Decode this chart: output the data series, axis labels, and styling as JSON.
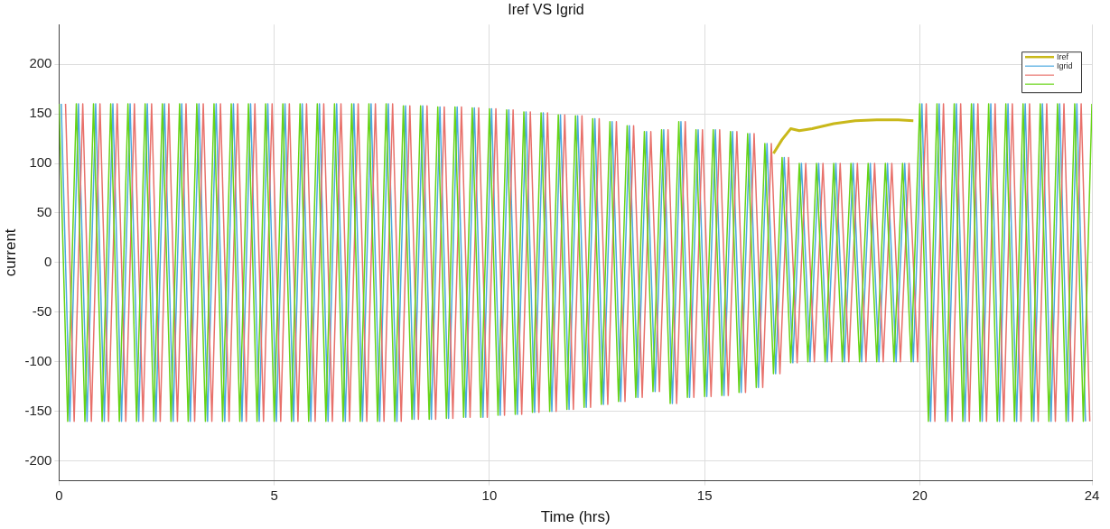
{
  "chart_data": {
    "type": "line",
    "title": "Iref VS Igrid",
    "xlabel": "Time (hrs)",
    "ylabel": "current",
    "xlim": [
      0,
      24
    ],
    "xticks": [
      0,
      5,
      10,
      15,
      20,
      24
    ],
    "ylim": [
      -220,
      240
    ],
    "yticks": [
      -200,
      -150,
      -100,
      -50,
      0,
      50,
      100,
      150,
      200
    ],
    "grid": true,
    "legend": "top right",
    "line_style": "solid",
    "marker": "none",
    "x": [
      0,
      0.2,
      0.4,
      0.6,
      0.8,
      1,
      1.2,
      1.4,
      1.6,
      1.8,
      2,
      2.2,
      2.4,
      2.6,
      2.8,
      3,
      3.2,
      3.4,
      3.6,
      3.8,
      4,
      4.2,
      4.4,
      4.6,
      4.8,
      5,
      5.2,
      5.4,
      5.6,
      5.8,
      6,
      6.2,
      6.4,
      6.6,
      6.8,
      7,
      7.2,
      7.4,
      7.6,
      7.8,
      8,
      8.2,
      8.4,
      8.6,
      8.8,
      9,
      9.2,
      9.4,
      9.6,
      9.8,
      10,
      10.2,
      10.4,
      10.6,
      10.8,
      11,
      11.2,
      11.4,
      11.6,
      11.8,
      12,
      12.2,
      12.4,
      12.6,
      12.8,
      13,
      13.2,
      13.4,
      13.6,
      13.8,
      14,
      14.2,
      14.4,
      14.6,
      14.8,
      15,
      15.2,
      15.4,
      15.6,
      15.8,
      16,
      16.2,
      16.4,
      16.6,
      16.8,
      17,
      17.2,
      17.4,
      17.6,
      17.8,
      18,
      18.2,
      18.4,
      18.6,
      18.8,
      19,
      19.2,
      19.4,
      19.6,
      19.8,
      20,
      20.2,
      20.4,
      20.6,
      20.8,
      21,
      21.2,
      21.4,
      21.6,
      21.8,
      22,
      22.2,
      22.4,
      22.6,
      22.8,
      23,
      23.2,
      23.4,
      23.6,
      23.8,
      24
    ],
    "series": [
      {
        "name": "Iref",
        "color": "#c9b81a",
        "x": [
          16.6,
          16.8,
          17,
          17.2,
          17.5,
          18,
          18.5,
          19,
          19.5,
          19.85
        ],
        "values": [
          110,
          124,
          135,
          133,
          135,
          140,
          143,
          144,
          144,
          143
        ]
      },
      {
        "name": "Igrid",
        "color": "#4aa8e0",
        "x": [
          0.05,
          0.25,
          0.45,
          0.65,
          0.85,
          1.05,
          1.25,
          1.45,
          1.65,
          1.85,
          2.05,
          2.25,
          2.45,
          2.65,
          2.85,
          3.05,
          3.25,
          3.45,
          3.65,
          3.85,
          4.05,
          4.25,
          4.45,
          4.65,
          4.85,
          5.05,
          5.25,
          5.45,
          5.65,
          5.85,
          6.05,
          6.25,
          6.45,
          6.65,
          6.85,
          7.05,
          7.25,
          7.45,
          7.65,
          7.85,
          8.05,
          8.25,
          8.45,
          8.65,
          8.85,
          9.05,
          9.25,
          9.45,
          9.65,
          9.85,
          10.05,
          10.25,
          10.45,
          10.65,
          10.85,
          11.05,
          11.25,
          11.45,
          11.65,
          11.85,
          12.05,
          12.25,
          12.45,
          12.65,
          12.85,
          13.05,
          13.25,
          13.45,
          13.65,
          13.85,
          14.05,
          14.25,
          14.45,
          14.65,
          14.85,
          15.05,
          15.25,
          15.45,
          15.65,
          15.85,
          16.05,
          16.25,
          16.45,
          16.65,
          16.85,
          17.05,
          17.25,
          17.45,
          17.65,
          17.85,
          18.05,
          18.25,
          18.45,
          18.65,
          18.85,
          19.05,
          19.25,
          19.45,
          19.65,
          19.85,
          20.05,
          20.25,
          20.45,
          20.65,
          20.85,
          21.05,
          21.25,
          21.45,
          21.65,
          21.85,
          22.05,
          22.25,
          22.45,
          22.65,
          22.85,
          23.05,
          23.25,
          23.45,
          23.65,
          23.85
        ],
        "values": [
          160,
          -160,
          160,
          -160,
          160,
          -160,
          160,
          -160,
          160,
          -160,
          160,
          -160,
          160,
          -160,
          160,
          -160,
          160,
          -160,
          160,
          -160,
          160,
          -160,
          160,
          -160,
          160,
          -160,
          160,
          -160,
          160,
          -160,
          160,
          -160,
          160,
          -160,
          160,
          -160,
          160,
          -160,
          160,
          -160,
          158,
          -158,
          158,
          -158,
          157,
          -157,
          157,
          -156,
          156,
          -156,
          155,
          -154,
          154,
          -153,
          152,
          -151,
          151,
          -150,
          149,
          -148,
          148,
          -146,
          145,
          -143,
          142,
          -140,
          138,
          -136,
          132,
          -130,
          134,
          -142,
          142,
          -136,
          134,
          -135,
          134,
          -134,
          132,
          -131,
          130,
          -126,
          120,
          -112,
          106,
          -101,
          100,
          -100,
          100,
          -100,
          100,
          -100,
          100,
          -100,
          100,
          -100,
          100,
          -100,
          100,
          -100,
          160,
          -160,
          160,
          -160,
          160,
          -160,
          160,
          -160,
          160,
          -160,
          160,
          -160,
          160,
          -160,
          160,
          -160,
          160,
          -160,
          160,
          -160
        ]
      },
      {
        "color": "#e8706a",
        "x": [
          0.15,
          0.35,
          0.55,
          0.75,
          0.95,
          1.15,
          1.35,
          1.55,
          1.75,
          1.95,
          2.15,
          2.35,
          2.55,
          2.75,
          2.95,
          3.15,
          3.35,
          3.55,
          3.75,
          3.95,
          4.15,
          4.35,
          4.55,
          4.75,
          4.95,
          5.15,
          5.35,
          5.55,
          5.75,
          5.95,
          6.15,
          6.35,
          6.55,
          6.75,
          6.95,
          7.15,
          7.35,
          7.55,
          7.75,
          7.95,
          8.15,
          8.35,
          8.55,
          8.75,
          8.95,
          9.15,
          9.35,
          9.55,
          9.75,
          9.95,
          10.15,
          10.35,
          10.55,
          10.75,
          10.95,
          11.15,
          11.35,
          11.55,
          11.75,
          11.95,
          12.15,
          12.35,
          12.55,
          12.75,
          12.95,
          13.15,
          13.35,
          13.55,
          13.75,
          13.95,
          14.15,
          14.35,
          14.55,
          14.75,
          14.95,
          15.15,
          15.35,
          15.55,
          15.75,
          15.95,
          16.15,
          16.35,
          16.55,
          16.75,
          16.95,
          17.15,
          17.35,
          17.55,
          17.75,
          17.95,
          18.15,
          18.35,
          18.55,
          18.75,
          18.95,
          19.15,
          19.35,
          19.55,
          19.75,
          19.95,
          20.15,
          20.35,
          20.55,
          20.75,
          20.95,
          21.15,
          21.35,
          21.55,
          21.75,
          21.95,
          22.15,
          22.35,
          22.55,
          22.75,
          22.95,
          23.15,
          23.35,
          23.55,
          23.75,
          23.95
        ],
        "values": [
          160,
          -160,
          160,
          -160,
          160,
          -160,
          160,
          -160,
          160,
          -160,
          160,
          -160,
          160,
          -160,
          160,
          -160,
          160,
          -160,
          160,
          -160,
          160,
          -160,
          160,
          -160,
          160,
          -160,
          160,
          -160,
          160,
          -160,
          160,
          -160,
          160,
          -160,
          160,
          -160,
          160,
          -160,
          160,
          -160,
          158,
          -158,
          158,
          -158,
          157,
          -157,
          157,
          -156,
          156,
          -156,
          155,
          -154,
          154,
          -153,
          152,
          -151,
          151,
          -150,
          149,
          -148,
          148,
          -146,
          145,
          -143,
          142,
          -140,
          138,
          -136,
          132,
          -130,
          134,
          -142,
          142,
          -136,
          134,
          -135,
          134,
          -134,
          132,
          -131,
          130,
          -126,
          120,
          -112,
          106,
          -101,
          100,
          -100,
          100,
          -100,
          100,
          -100,
          100,
          -100,
          100,
          -100,
          100,
          -100,
          100,
          -100,
          160,
          -160,
          160,
          -160,
          160,
          -160,
          160,
          -160,
          160,
          -160,
          160,
          -160,
          160,
          -160,
          160,
          -160,
          160,
          -160,
          160,
          -160
        ]
      },
      {
        "color": "#66d414",
        "values": [
          160,
          -160,
          160,
          -160,
          160,
          -160,
          160,
          -160,
          160,
          -160,
          160,
          -160,
          160,
          -160,
          160,
          -160,
          160,
          -160,
          160,
          -160,
          160,
          -160,
          160,
          -160,
          160,
          -160,
          160,
          -160,
          160,
          -160,
          160,
          -160,
          160,
          -160,
          160,
          -160,
          160,
          -160,
          160,
          -160,
          158,
          -158,
          158,
          -158,
          157,
          -157,
          157,
          -156,
          156,
          -156,
          155,
          -154,
          154,
          -153,
          152,
          -151,
          151,
          -150,
          149,
          -148,
          148,
          -146,
          145,
          -143,
          142,
          -140,
          138,
          -136,
          132,
          -130,
          134,
          -142,
          142,
          -136,
          134,
          -135,
          134,
          -134,
          132,
          -131,
          130,
          -126,
          120,
          -112,
          106,
          -101,
          100,
          -100,
          100,
          -100,
          100,
          -100,
          100,
          -100,
          100,
          -100,
          100,
          -100,
          100,
          -100,
          160,
          -160,
          160,
          -160,
          160,
          -160,
          160,
          -160,
          160,
          -160,
          160,
          -160,
          160,
          -160,
          160,
          -160,
          160,
          -160,
          160,
          -160,
          160
        ]
      }
    ]
  }
}
